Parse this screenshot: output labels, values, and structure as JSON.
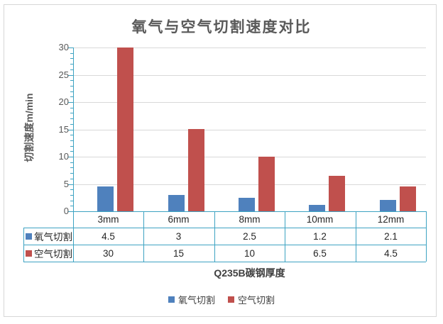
{
  "chart_data": {
    "type": "bar",
    "title": "氧气与空气切割速度对比",
    "categories": [
      "3mm",
      "6mm",
      "8mm",
      "10mm",
      "12mm"
    ],
    "series": [
      {
        "name": "氧气切割",
        "color": "#4F81BD",
        "values": [
          4.5,
          3,
          2.5,
          1.2,
          2.1
        ]
      },
      {
        "name": "空气切割",
        "color": "#C0504D",
        "values": [
          30,
          15,
          10,
          6.5,
          4.5
        ]
      }
    ],
    "xlabel": "Q235B碳钢厚度",
    "ylabel": "切割速度m/min",
    "ylim": [
      0,
      30
    ],
    "ytick_interval": 5,
    "minor_tick_interval": 1,
    "yticks": [
      0,
      5,
      10,
      15,
      20,
      25,
      30
    ],
    "grid": true,
    "legend_entries": [
      "氧气切割",
      "空气切割"
    ],
    "legend_position": "bottom",
    "data_table_shown": true
  },
  "colors": {
    "axis_and_table_border": "#3EA3C2",
    "gridline": "#D9D9D9",
    "series_blue": "#4F81BD",
    "series_red": "#C0504D",
    "title_text": "#595959",
    "tick_text": "#595959",
    "table_text": "#262626",
    "frame_border": "#D7D7D7"
  }
}
